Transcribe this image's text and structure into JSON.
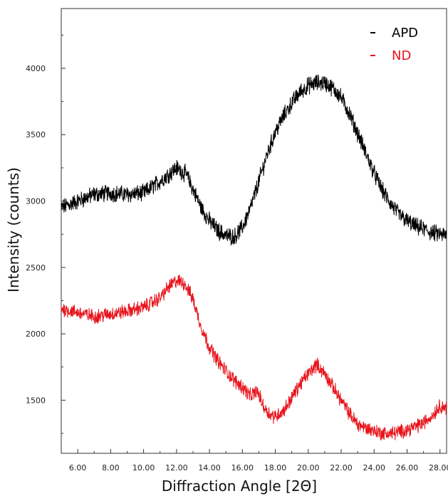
{
  "chart_data": {
    "type": "line",
    "title": "",
    "xlabel": "Diffraction Angle [2Θ]",
    "ylabel": "Intensity (counts)",
    "xlim": [
      5.0,
      28.4
    ],
    "ylim": [
      1100,
      4450
    ],
    "x_ticks": [
      6,
      8,
      10,
      12,
      14,
      16,
      18,
      20,
      22,
      24,
      26,
      28
    ],
    "x_tick_labels": [
      "6.00",
      "8.00",
      "10.00",
      "12.00",
      "14.00",
      "16.00",
      "18.00",
      "20.00",
      "22.00",
      "24.00",
      "26.00",
      "28.00"
    ],
    "y_ticks": [
      1500,
      2000,
      2500,
      3000,
      3500,
      4000
    ],
    "y_tick_labels": [
      "1500",
      "2000",
      "2500",
      "3000",
      "3500",
      "4000"
    ],
    "grid": false,
    "legend_position": "top-right",
    "series": [
      {
        "name": "APD",
        "color": "#000000",
        "x": [
          5.0,
          6.0,
          7.0,
          8.0,
          9.0,
          10.0,
          11.0,
          12.0,
          12.6,
          13.5,
          14.0,
          14.5,
          15.0,
          15.5,
          16.0,
          16.5,
          17.0,
          17.5,
          18.0,
          18.5,
          19.0,
          19.5,
          20.0,
          20.5,
          21.0,
          21.5,
          22.0,
          22.5,
          23.0,
          23.5,
          24.0,
          24.5,
          25.0,
          25.5,
          26.0,
          26.5,
          27.0,
          27.5,
          28.0,
          28.4
        ],
        "y": [
          2950,
          3000,
          3050,
          3060,
          3050,
          3060,
          3150,
          3250,
          3200,
          2950,
          2850,
          2780,
          2740,
          2730,
          2800,
          2950,
          3150,
          3350,
          3520,
          3640,
          3740,
          3820,
          3870,
          3890,
          3890,
          3850,
          3780,
          3660,
          3510,
          3360,
          3210,
          3080,
          2980,
          2900,
          2850,
          2810,
          2790,
          2760,
          2750,
          2740
        ]
      },
      {
        "name": "ND",
        "color": "#e8141c",
        "x": [
          5.0,
          6.0,
          7.0,
          8.0,
          9.0,
          10.0,
          11.0,
          11.5,
          12.0,
          12.5,
          13.0,
          13.5,
          14.0,
          14.5,
          15.0,
          15.5,
          16.0,
          16.5,
          16.9,
          17.3,
          17.7,
          18.0,
          18.5,
          19.0,
          19.5,
          20.0,
          20.5,
          21.0,
          21.5,
          22.0,
          22.5,
          23.0,
          23.5,
          24.0,
          24.5,
          25.0,
          25.5,
          26.0,
          26.5,
          27.0,
          27.5,
          28.0,
          28.4
        ],
        "y": [
          2190,
          2160,
          2130,
          2150,
          2170,
          2200,
          2270,
          2350,
          2400,
          2380,
          2260,
          2050,
          1900,
          1800,
          1720,
          1650,
          1600,
          1530,
          1570,
          1450,
          1390,
          1380,
          1420,
          1520,
          1620,
          1700,
          1770,
          1700,
          1600,
          1500,
          1400,
          1320,
          1290,
          1270,
          1250,
          1250,
          1260,
          1280,
          1300,
          1330,
          1380,
          1460,
          1440
        ]
      }
    ]
  }
}
